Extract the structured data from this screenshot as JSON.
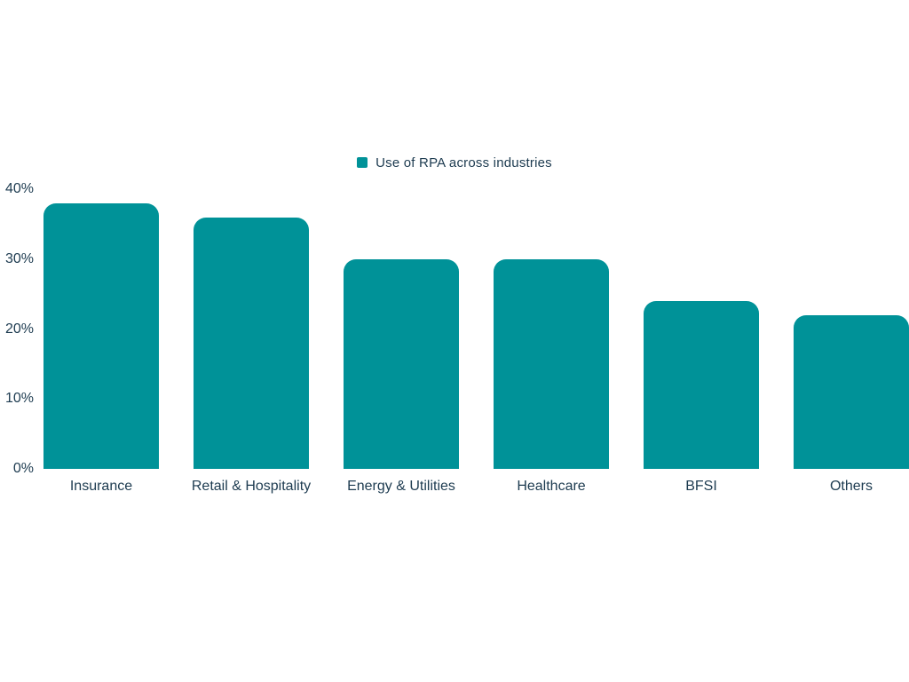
{
  "chart_data": {
    "type": "bar",
    "title": "",
    "legend": "Use of RPA across industries",
    "categories": [
      "Insurance",
      "Retail & Hospitality",
      "Energy & Utilities",
      "Healthcare",
      "BFSI",
      "Others"
    ],
    "values": [
      38,
      36,
      30,
      30,
      24,
      22
    ],
    "xlabel": "",
    "ylabel": "",
    "ylim": [
      0,
      40
    ],
    "ytick_values": [
      0,
      10,
      20,
      30,
      40
    ],
    "ytick_labels": [
      "0%",
      "10%",
      "20%",
      "30%",
      "40%"
    ],
    "grid": false,
    "legend_position": "top-center",
    "bar_color": "#009298",
    "text_color": "#1d3b50"
  }
}
